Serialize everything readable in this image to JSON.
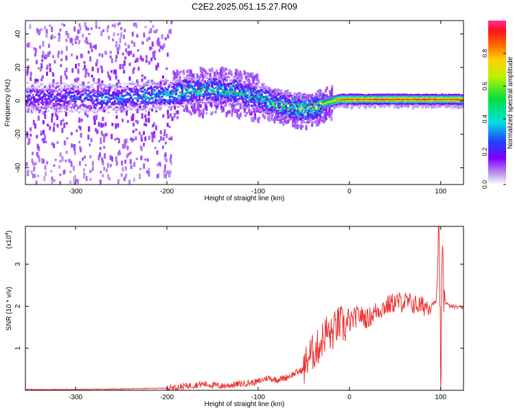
{
  "title": "C2E2.2025.051.15.27.R09",
  "chart_data": [
    {
      "type": "heatmap",
      "xlabel": "Height of straight line (km)",
      "ylabel": "Frequency (Hz)",
      "xlim": [
        -355,
        125
      ],
      "ylim": [
        -50,
        48
      ],
      "x_ticks": [
        -300,
        -200,
        -100,
        0,
        100
      ],
      "x_tick_labels": [
        "-300",
        "-200",
        "-100",
        "0",
        "100"
      ],
      "y_ticks": [
        -40,
        -20,
        0,
        20,
        40
      ],
      "y_tick_labels": [
        "-40",
        "-20",
        "0",
        "20",
        "40"
      ],
      "colorbar": {
        "label": "Normalized spectral amplitude",
        "range": [
          0,
          1
        ],
        "ticks": [
          0.0,
          0.2,
          0.4,
          0.6,
          0.8
        ],
        "tick_labels": [
          "0.0",
          "0.2",
          "0.4",
          "0.6",
          "0.8"
        ],
        "colormap": "rainbow"
      },
      "ridge": {
        "x": [
          -350,
          -300,
          -250,
          -200,
          -175,
          -150,
          -125,
          -100,
          -80,
          -60,
          -45,
          -35,
          -20,
          -10,
          0,
          25,
          50,
          75,
          100,
          125
        ],
        "frequency": [
          2,
          2,
          2,
          4,
          6,
          7,
          6,
          2,
          -2,
          -4,
          -5,
          -3,
          0,
          1,
          1,
          1,
          1,
          1,
          1,
          1
        ],
        "amplitude": [
          0.25,
          0.3,
          0.35,
          0.45,
          0.5,
          0.5,
          0.5,
          0.5,
          0.55,
          0.6,
          0.6,
          0.65,
          0.75,
          0.9,
          0.95,
          1.0,
          0.95,
          1.0,
          0.95,
          1.0
        ]
      }
    },
    {
      "type": "line",
      "xlabel": "Height of straight line (km)",
      "ylabel": "SNR (10 * v/v)",
      "y_multiplier": "(x10^4)",
      "xlim": [
        -355,
        125
      ],
      "ylim": [
        0,
        3.9
      ],
      "x_ticks": [
        -300,
        -200,
        -100,
        0,
        100
      ],
      "x_tick_labels": [
        "-300",
        "-200",
        "-100",
        "0",
        "100"
      ],
      "y_ticks": [
        1,
        2,
        3
      ],
      "y_tick_labels": [
        "1",
        "2",
        "3"
      ],
      "color": "#ee3030",
      "series": [
        {
          "x": [
            -355,
            -300,
            -250,
            -200,
            -180,
            -160,
            -140,
            -120,
            -100,
            -90,
            -80,
            -70,
            -60,
            -50,
            -45,
            -40,
            -35,
            -30,
            -25,
            -20,
            -15,
            -10,
            -5,
            0,
            10,
            20,
            30,
            40,
            50,
            60,
            70,
            80,
            90,
            95,
            98,
            100,
            102,
            105,
            110,
            125
          ],
          "y": [
            0.02,
            0.02,
            0.03,
            0.05,
            0.1,
            0.15,
            0.1,
            0.15,
            0.2,
            0.3,
            0.25,
            0.3,
            0.4,
            0.5,
            0.8,
            0.9,
            1.0,
            1.2,
            1.4,
            1.3,
            1.5,
            1.6,
            1.5,
            1.6,
            1.8,
            1.7,
            1.9,
            2.0,
            2.1,
            2.1,
            2.05,
            2.0,
            2.05,
            2.1,
            3.4,
            0.35,
            3.0,
            2.1,
            2.0,
            1.97
          ]
        }
      ]
    }
  ]
}
